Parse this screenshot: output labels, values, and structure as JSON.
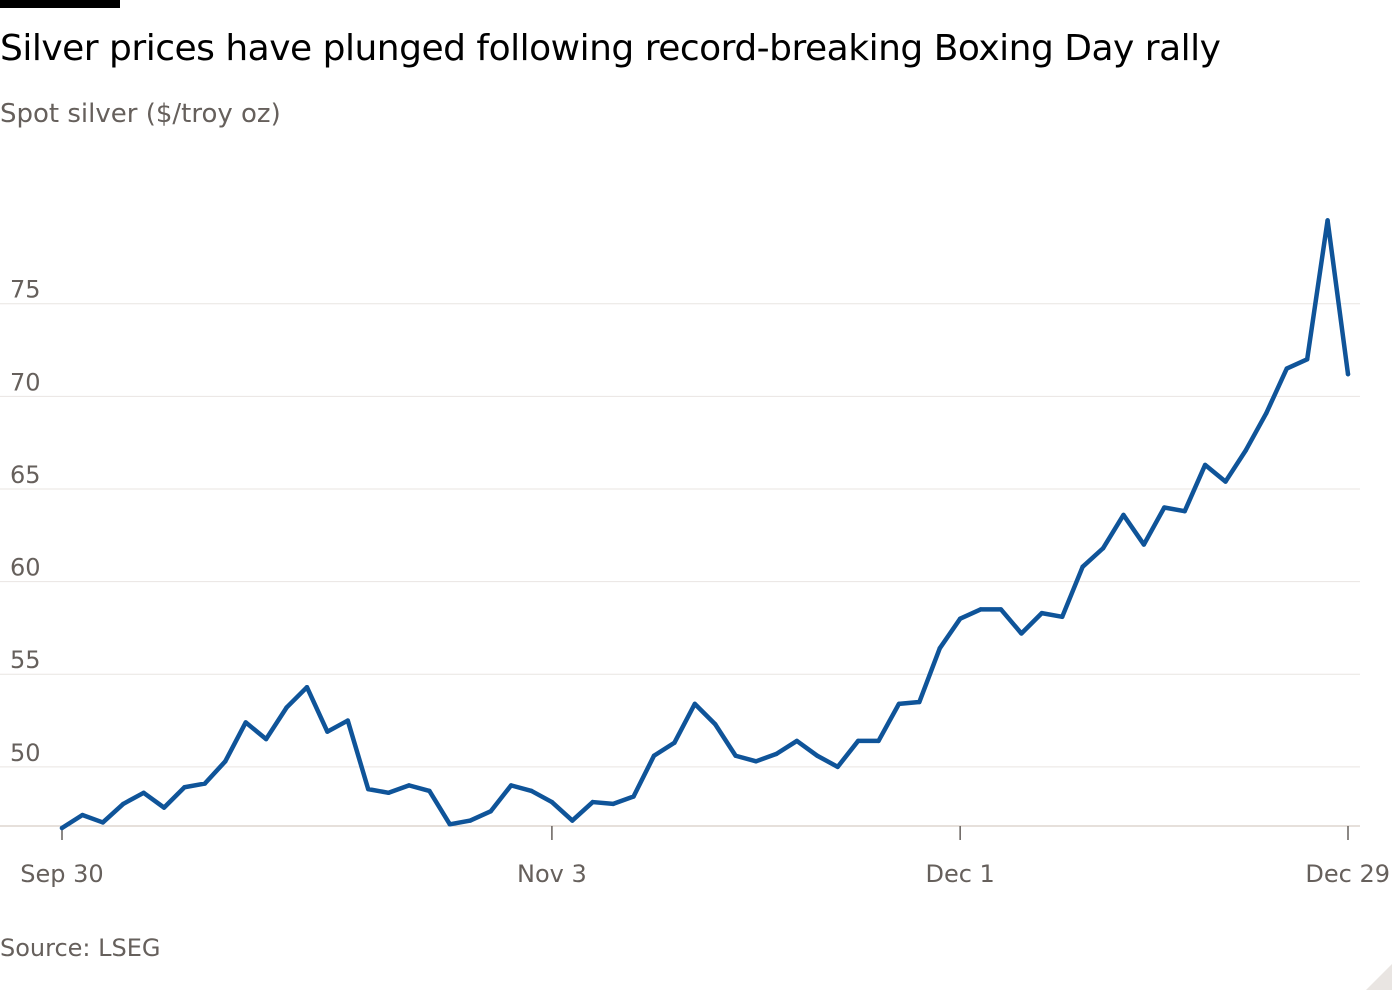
{
  "header": {
    "title": "Silver prices have plunged following record-breaking Boxing Day rally",
    "subtitle": "Spot silver ($/troy oz)"
  },
  "footer": {
    "source": "Source: LSEG"
  },
  "colors": {
    "line": "#0f5499",
    "grid": "#e9e5e2",
    "axis_text": "#66605c"
  },
  "chart_data": {
    "type": "line",
    "title": "Silver prices have plunged following record-breaking Boxing Day rally",
    "subtitle": "Spot silver ($/troy oz)",
    "xlabel": "",
    "ylabel": "Spot silver ($/troy oz)",
    "ylim": [
      46.7,
      80.6
    ],
    "xlim": [
      0,
      63
    ],
    "y_ticks": [
      50,
      55,
      60,
      65,
      70,
      75
    ],
    "x_ticks": [
      {
        "label": "Sep 30",
        "index": 0
      },
      {
        "label": "Nov 3",
        "index": 24
      },
      {
        "label": "Dec 1",
        "index": 44
      },
      {
        "label": "Dec 29",
        "index": 63
      }
    ],
    "grid": true,
    "legend": "none",
    "series": [
      {
        "name": "Spot silver",
        "values": [
          46.7,
          47.4,
          47.0,
          48.0,
          48.6,
          47.8,
          48.9,
          49.1,
          50.3,
          52.4,
          51.5,
          53.2,
          54.3,
          51.9,
          52.5,
          48.8,
          48.6,
          49.0,
          48.7,
          46.9,
          47.1,
          47.6,
          49.0,
          48.7,
          48.1,
          47.1,
          48.1,
          48.0,
          48.4,
          50.6,
          51.3,
          53.4,
          52.3,
          50.6,
          50.3,
          50.7,
          51.4,
          50.6,
          50.0,
          51.4,
          51.4,
          53.4,
          53.5,
          56.4,
          58.0,
          58.5,
          58.5,
          57.2,
          58.3,
          58.1,
          60.8,
          61.8,
          63.6,
          62.0,
          64.0,
          63.8,
          66.3,
          65.4,
          67.1,
          69.1,
          71.5,
          72.0,
          79.5,
          71.2
        ]
      }
    ]
  }
}
